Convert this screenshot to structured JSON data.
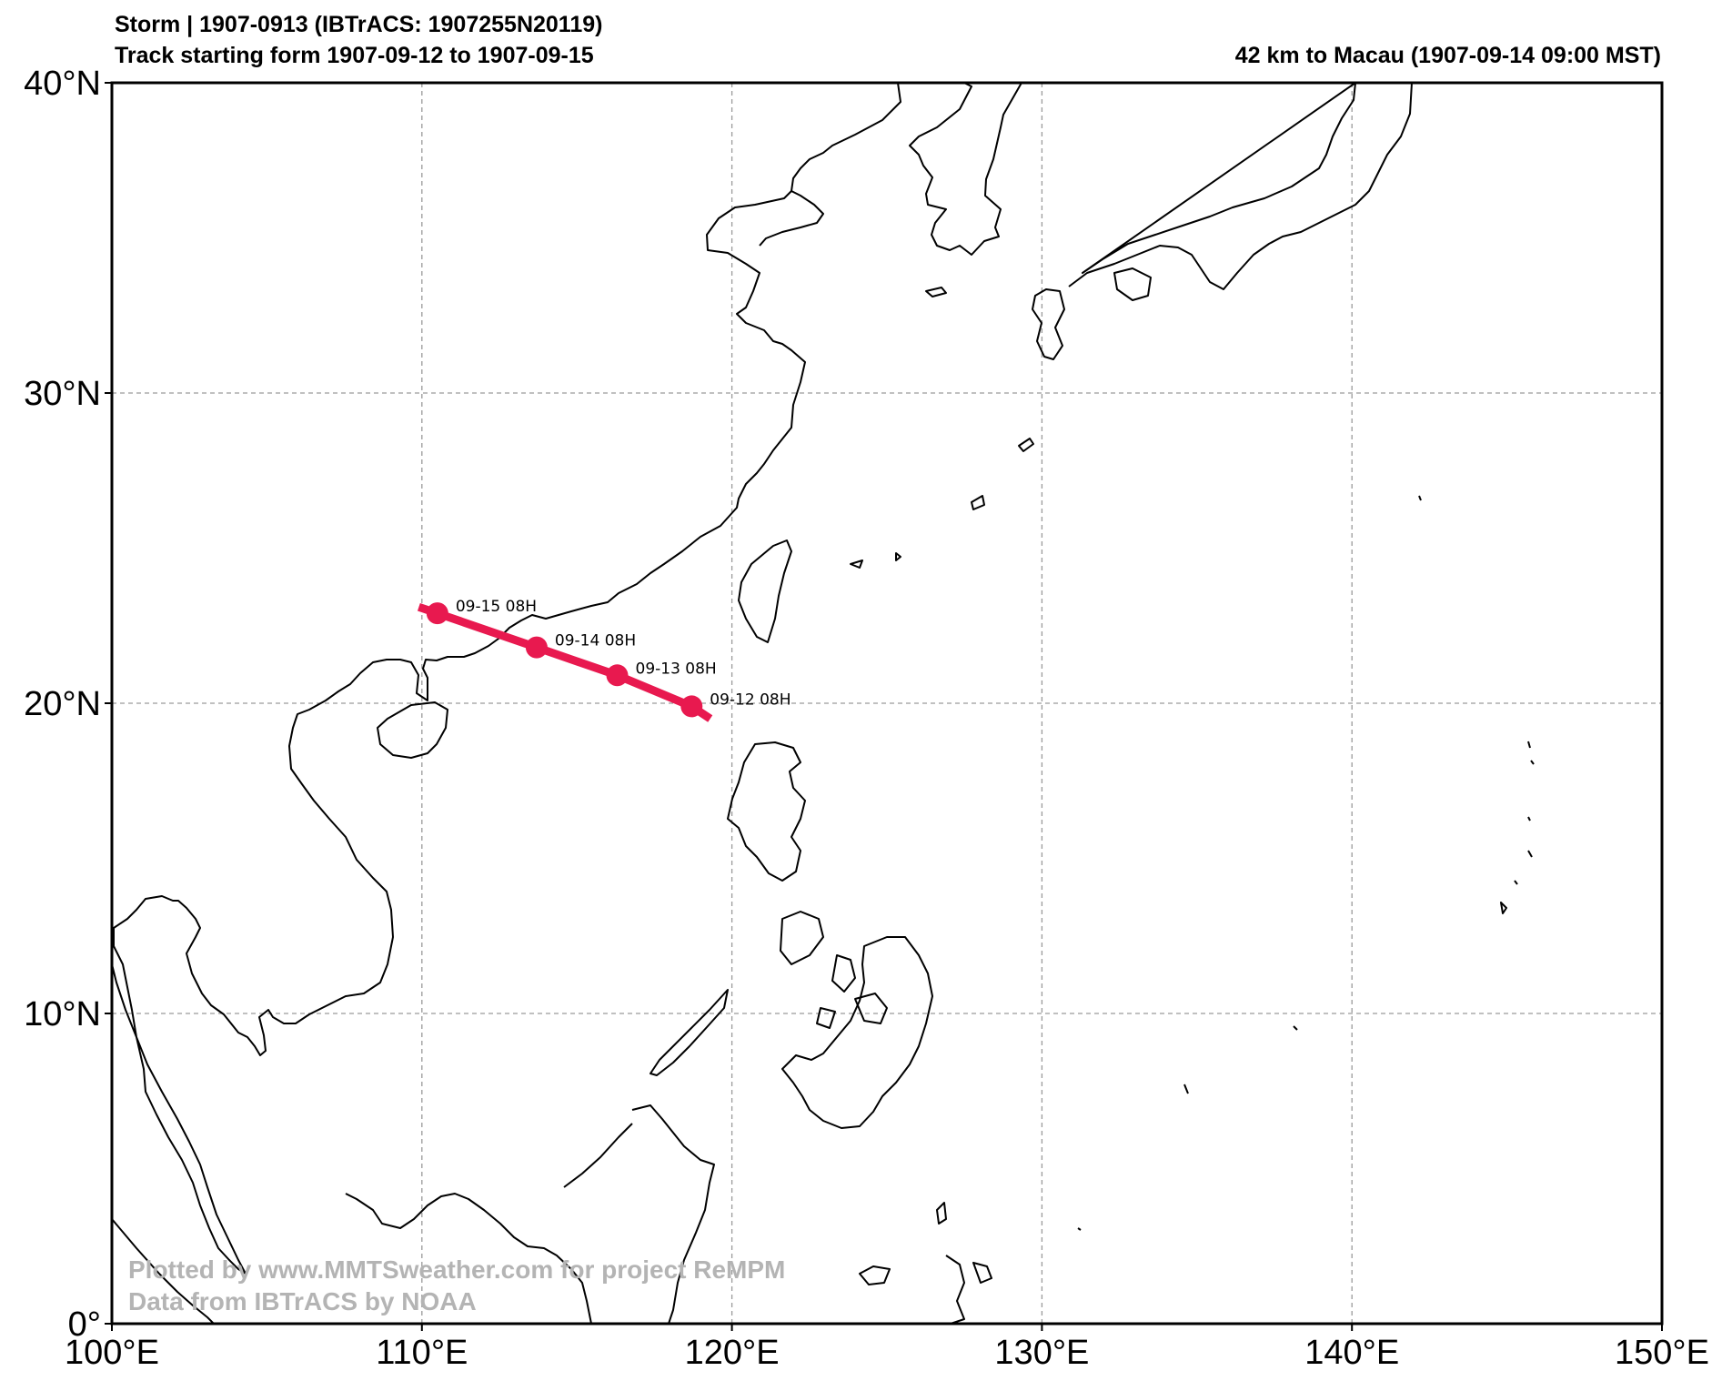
{
  "header": {
    "title_line1": "Storm | 1907-0913 (IBTrACS: 1907255N20119)",
    "title_line2": "Track starting form 1907-09-12 to 1907-09-15",
    "right_title": "42 km to Macau (1907-09-14 09:00 MST)"
  },
  "map": {
    "lon_range": [
      100,
      150
    ],
    "lat_range": [
      0,
      40
    ],
    "lon_ticks": [
      {
        "value": 100,
        "label": "100°E"
      },
      {
        "value": 110,
        "label": "110°E"
      },
      {
        "value": 120,
        "label": "120°E"
      },
      {
        "value": 130,
        "label": "130°E"
      },
      {
        "value": 140,
        "label": "140°E"
      },
      {
        "value": 150,
        "label": "150°E"
      }
    ],
    "lat_ticks": [
      {
        "value": 0,
        "label": "0°"
      },
      {
        "value": 10,
        "label": "10°N"
      },
      {
        "value": 20,
        "label": "20°N"
      },
      {
        "value": 30,
        "label": "30°N"
      },
      {
        "value": 40,
        "label": "40°N"
      }
    ],
    "gridlines": true,
    "track_color": "#e8194f",
    "track": [
      {
        "lon": 119.3,
        "lat": 19.5
      },
      {
        "lon": 118.7,
        "lat": 19.9,
        "label": "09-12 08H"
      },
      {
        "lon": 116.3,
        "lat": 20.9,
        "label": "09-13 08H"
      },
      {
        "lon": 113.7,
        "lat": 21.8,
        "label": "09-14 08H"
      },
      {
        "lon": 110.5,
        "lat": 22.9,
        "label": "09-15 08H"
      },
      {
        "lon": 109.9,
        "lat": 23.1
      }
    ]
  },
  "credits": {
    "line1": "Plotted by www.MMTSweather.com for project ReMPM",
    "line2": "Data from IBTrACS by NOAA"
  }
}
